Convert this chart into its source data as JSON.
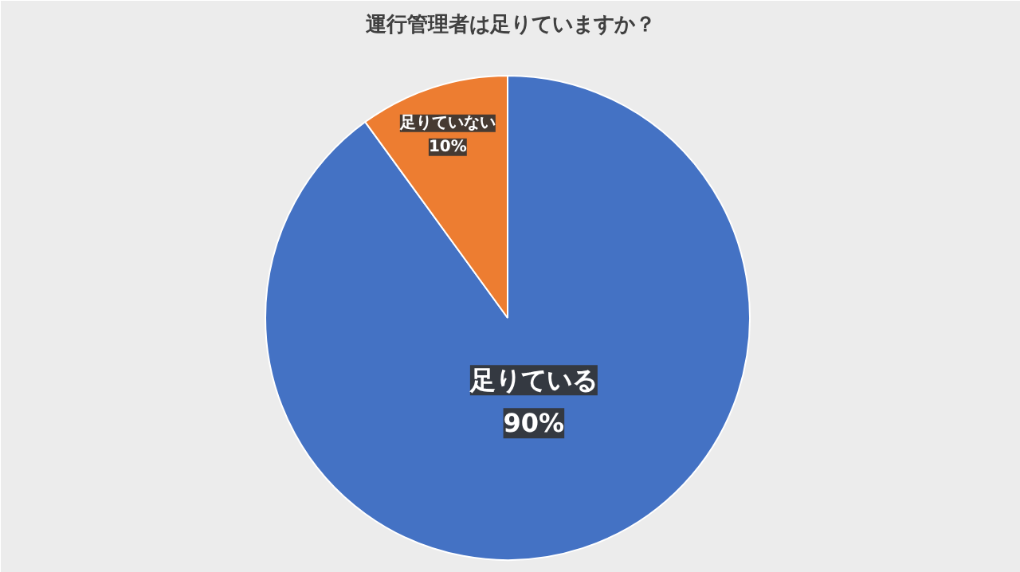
{
  "chart_data": {
    "type": "pie",
    "title": "運行管理者は足りていますか？",
    "categories": [
      "足りている",
      "足りていない"
    ],
    "values": [
      90,
      10
    ],
    "colors": [
      "#4472c4",
      "#ed7d31"
    ],
    "value_labels": [
      "90%",
      "10%"
    ]
  }
}
